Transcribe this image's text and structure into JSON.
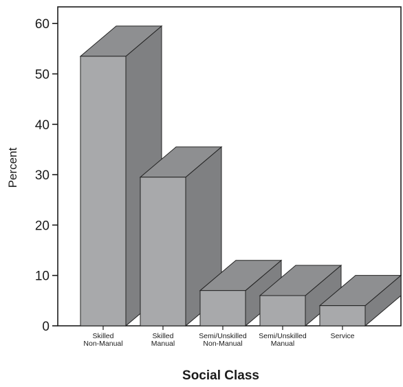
{
  "chart_data": {
    "type": "bar",
    "title": "",
    "xlabel": "Social Class",
    "ylabel": "Percent",
    "ylim": [
      0,
      63
    ],
    "yticks": [
      0,
      10,
      20,
      30,
      40,
      50,
      60
    ],
    "categories": [
      [
        "Skilled",
        "Non-Manual"
      ],
      [
        "Skilled",
        "Manual"
      ],
      [
        "Semi/Unskilled",
        "Non-Manual"
      ],
      [
        "Semi/Unskilled",
        "Manual"
      ],
      [
        "Service"
      ]
    ],
    "values": [
      53.5,
      29.5,
      7,
      6,
      4
    ],
    "style": "3d",
    "grid": false,
    "colors": {
      "front": "#a8a9ab",
      "top": "#8e8f91",
      "side": "#7f8082",
      "stroke": "#222222",
      "axis": "#1a1a1a"
    }
  }
}
